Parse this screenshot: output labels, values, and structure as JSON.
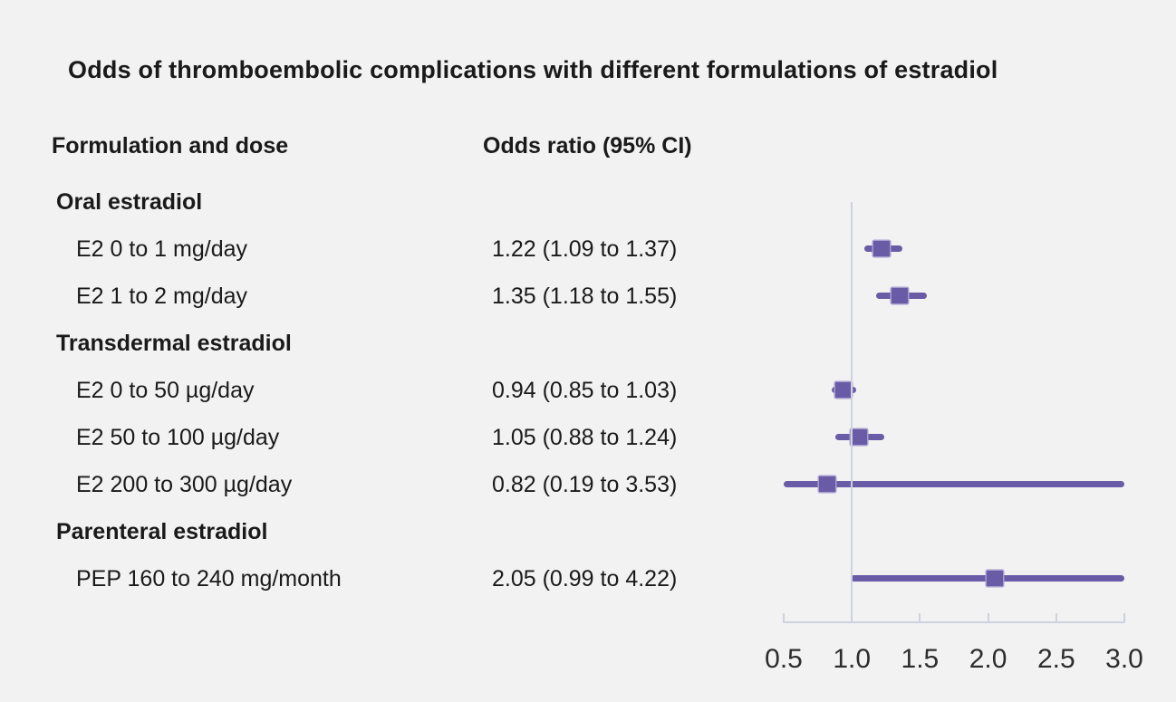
{
  "title": "Odds of thromboembolic complications with different formulations of estradiol",
  "columns": {
    "formulation": "Formulation and dose",
    "odds_ratio": "Odds ratio (95% CI)"
  },
  "colors": {
    "background": "#f2f2f3",
    "text": "#1a1a1a",
    "marker_purple": "#6a5ba6",
    "marker_edge": "#a79dce",
    "axis_line": "#cdd2de",
    "tick_text": "#2d2d2d"
  },
  "chart_data": {
    "type": "forest",
    "title": "Odds of thromboembolic complications with different formulations of estradiol",
    "x_axis": {
      "min": 0.5,
      "max": 3.0,
      "reference_line": 1.0,
      "ticks": [
        "0.5",
        "1.0",
        "1.5",
        "2.0",
        "2.5",
        "3.0"
      ],
      "note": "confidence intervals clipped to axis range"
    },
    "rows": [
      {
        "kind": "section",
        "label": "Oral estradiol"
      },
      {
        "kind": "item",
        "label": "E2 0 to 1 mg/day",
        "or_text": "1.22 (1.09 to 1.37)",
        "or": 1.22,
        "ci_low": 1.09,
        "ci_high": 1.37
      },
      {
        "kind": "item",
        "label": "E2 1 to 2 mg/day",
        "or_text": "1.35 (1.18 to 1.55)",
        "or": 1.35,
        "ci_low": 1.18,
        "ci_high": 1.55
      },
      {
        "kind": "section",
        "label": "Transdermal estradiol"
      },
      {
        "kind": "item",
        "label": "E2 0 to 50 µg/day",
        "or_text": "0.94 (0.85 to 1.03)",
        "or": 0.94,
        "ci_low": 0.85,
        "ci_high": 1.03
      },
      {
        "kind": "item",
        "label": "E2 50 to 100 µg/day",
        "or_text": "1.05 (0.88 to 1.24)",
        "or": 1.05,
        "ci_low": 0.88,
        "ci_high": 1.24
      },
      {
        "kind": "item",
        "label": "E2 200 to 300 µg/day",
        "or_text": "0.82 (0.19 to 3.53)",
        "or": 0.82,
        "ci_low": 0.19,
        "ci_high": 3.53
      },
      {
        "kind": "section",
        "label": "Parenteral estradiol"
      },
      {
        "kind": "item",
        "label": "PEP 160 to 240 mg/month",
        "or_text": "2.05 (0.99 to 4.22)",
        "or": 2.05,
        "ci_low": 0.99,
        "ci_high": 4.22
      }
    ]
  }
}
